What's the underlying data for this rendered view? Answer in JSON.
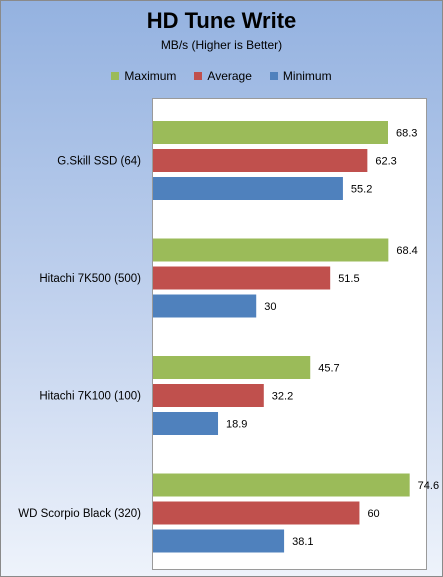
{
  "chart_data": {
    "type": "bar",
    "orientation": "horizontal",
    "title": "HD Tune Write",
    "subtitle": "MB/s (Higher is Better)",
    "categories": [
      "G.Skill SSD (64)",
      "Hitachi 7K500 (500)",
      "Hitachi 7K100 (100)",
      "WD Scorpio Black (320)"
    ],
    "series": [
      {
        "name": "Maximum",
        "color": "#9bbb59",
        "values": [
          68.3,
          68.4,
          45.7,
          74.6
        ]
      },
      {
        "name": "Average",
        "color": "#c0504d",
        "values": [
          62.3,
          51.5,
          32.2,
          60
        ]
      },
      {
        "name": "Minimum",
        "color": "#4f81bd",
        "values": [
          55.2,
          30,
          18.9,
          38.1
        ]
      }
    ],
    "xlim": [
      0,
      80
    ],
    "grid": false,
    "legend_position": "top"
  }
}
